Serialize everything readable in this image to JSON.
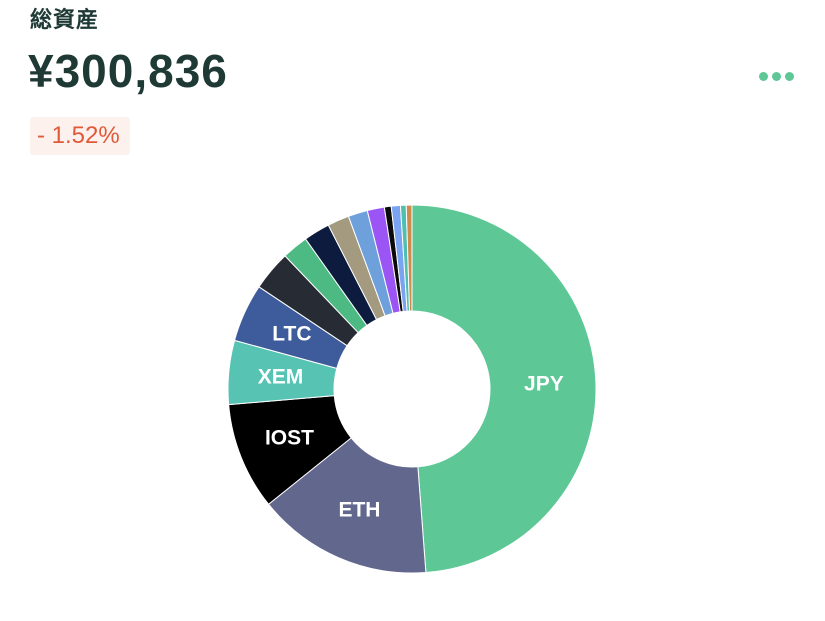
{
  "header": {
    "title": "総資産",
    "total": "¥300,836",
    "change": "- 1.52%",
    "more_icon": "more-horizontal-icon"
  },
  "colors": {
    "text": "#1f3a34",
    "negative": "#e05a3a",
    "negative_bg": "#fdf1ee",
    "accent": "#5ec796"
  },
  "chart_data": {
    "type": "pie",
    "donut": true,
    "slices": [
      {
        "label": "JPY",
        "percent": 48.7,
        "color": "#5ec796"
      },
      {
        "label": "ETH",
        "percent": 15.4,
        "color": "#62678e"
      },
      {
        "label": "IOST",
        "percent": 9.4,
        "color": "#000000"
      },
      {
        "label": "XEM",
        "percent": 5.6,
        "color": "#56c3b3"
      },
      {
        "label": "LTC",
        "percent": 5.1,
        "color": "#3e5c9c"
      },
      {
        "label": "",
        "percent": 3.5,
        "color": "#272b33"
      },
      {
        "label": "",
        "percent": 2.3,
        "color": "#4cba82"
      },
      {
        "label": "",
        "percent": 2.3,
        "color": "#0d1b3e"
      },
      {
        "label": "",
        "percent": 1.9,
        "color": "#a39a80"
      },
      {
        "label": "",
        "percent": 1.7,
        "color": "#6ea0dc"
      },
      {
        "label": "",
        "percent": 1.5,
        "color": "#9b55f5"
      },
      {
        "label": "",
        "percent": 0.6,
        "color": "#0a0a0a"
      },
      {
        "label": "",
        "percent": 0.8,
        "color": "#7aa3f2"
      },
      {
        "label": "",
        "percent": 0.5,
        "color": "#4fbfb0"
      },
      {
        "label": "",
        "percent": 0.5,
        "color": "#cf8a4e"
      }
    ]
  }
}
